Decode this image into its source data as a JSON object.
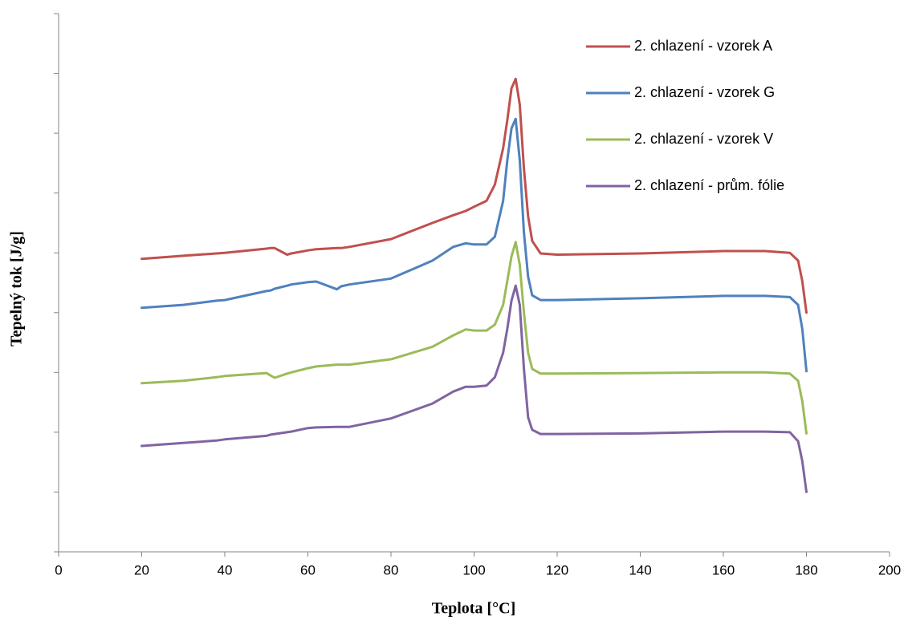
{
  "chart_data": {
    "type": "line",
    "x_label": "Teplota [°C]",
    "y_label": "Tepelný tok [J/g]",
    "xlim": [
      0,
      200
    ],
    "xticks": [
      0,
      20,
      40,
      60,
      80,
      100,
      120,
      140,
      160,
      180,
      200
    ],
    "ylim": [
      0,
      9
    ],
    "yticks": [
      0,
      1,
      2,
      3,
      4,
      5,
      6,
      7,
      8,
      9
    ],
    "ytick_labels": false,
    "legend": "top-right",
    "x": [
      20,
      30,
      38,
      40,
      50,
      51,
      52,
      55,
      56,
      60,
      62,
      67,
      68,
      70,
      80,
      90,
      95,
      98,
      100,
      103,
      105,
      107,
      108,
      109,
      110,
      111,
      112,
      113,
      114,
      116,
      120,
      140,
      160,
      170,
      176,
      178,
      179,
      180
    ],
    "series": [
      {
        "name": "2. chlazení - vzorek A",
        "color": "#c0504d",
        "values": [
          4.9,
          4.95,
          4.99,
          5.0,
          5.07,
          5.08,
          5.08,
          4.97,
          4.99,
          5.04,
          5.06,
          5.08,
          5.08,
          5.1,
          5.23,
          5.5,
          5.63,
          5.7,
          5.77,
          5.87,
          6.14,
          6.75,
          7.22,
          7.75,
          7.91,
          7.48,
          6.41,
          5.61,
          5.2,
          4.99,
          4.97,
          4.99,
          5.03,
          5.03,
          5.0,
          4.87,
          4.53,
          4.0
        ]
      },
      {
        "name": "2. chlazení - vzorek G",
        "color": "#4f81bd",
        "values": [
          4.08,
          4.13,
          4.2,
          4.21,
          4.36,
          4.37,
          4.4,
          4.45,
          4.47,
          4.51,
          4.52,
          4.39,
          4.44,
          4.47,
          4.57,
          4.87,
          5.1,
          5.16,
          5.14,
          5.14,
          5.27,
          5.87,
          6.55,
          7.08,
          7.24,
          6.55,
          5.34,
          4.6,
          4.29,
          4.21,
          4.21,
          4.24,
          4.28,
          4.28,
          4.26,
          4.13,
          3.73,
          3.02
        ]
      },
      {
        "name": "2. chlazení - vzorek V",
        "color": "#9bbb59",
        "values": [
          2.82,
          2.86,
          2.92,
          2.94,
          2.99,
          2.95,
          2.91,
          2.98,
          3.0,
          3.07,
          3.1,
          3.13,
          3.13,
          3.13,
          3.22,
          3.43,
          3.62,
          3.72,
          3.7,
          3.7,
          3.8,
          4.13,
          4.53,
          4.94,
          5.18,
          4.8,
          4.0,
          3.33,
          3.06,
          2.98,
          2.98,
          2.99,
          3.0,
          3.0,
          2.98,
          2.86,
          2.52,
          1.98
        ]
      },
      {
        "name": "2. chlazení - prům. fólie",
        "color": "#8064a2",
        "values": [
          1.77,
          1.82,
          1.86,
          1.88,
          1.94,
          1.96,
          1.97,
          2.0,
          2.01,
          2.07,
          2.08,
          2.09,
          2.09,
          2.09,
          2.23,
          2.48,
          2.68,
          2.76,
          2.76,
          2.78,
          2.92,
          3.33,
          3.73,
          4.2,
          4.45,
          4.13,
          3.06,
          2.25,
          2.04,
          1.97,
          1.97,
          1.98,
          2.01,
          2.01,
          2.0,
          1.85,
          1.52,
          1.0
        ]
      }
    ]
  }
}
